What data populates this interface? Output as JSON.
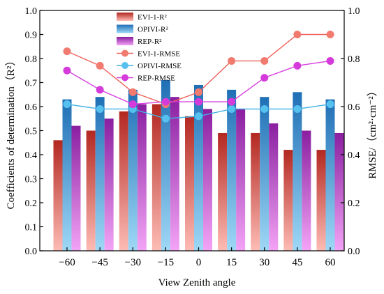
{
  "chart_data": {
    "type": "bar",
    "xlabel": "View Zenith angle",
    "ylabel_left": "Coefficients of determination（R²）",
    "ylabel_right": "RMSE/（cm²·cm⁻²）",
    "ylim_left": [
      0,
      1.0
    ],
    "ylim_right": [
      0,
      1.0
    ],
    "yticks_left": [
      "0.0",
      "0.1",
      "0.2",
      "0.3",
      "0.4",
      "0.5",
      "0.6",
      "0.7",
      "0.8",
      "0.9",
      "1.0"
    ],
    "yticks_right": [
      "0.0",
      "0.2",
      "0.4",
      "0.6",
      "0.8",
      "1.0"
    ],
    "categories": [
      "−60",
      "−45",
      "−30",
      "−15",
      "0",
      "15",
      "30",
      "45",
      "60"
    ],
    "grid": false,
    "legend_position": "top-center",
    "bar_series": [
      {
        "name": "EVI-1-R²",
        "color_top": "#b32821",
        "color_bottom": "#fdbcb5",
        "values": [
          0.46,
          0.5,
          0.58,
          0.61,
          0.56,
          0.49,
          0.49,
          0.42,
          0.42
        ]
      },
      {
        "name": "OPIVI-R²",
        "color_top": "#1f6fb5",
        "color_bottom": "#9fd8f6",
        "values": [
          0.63,
          0.64,
          0.67,
          0.71,
          0.69,
          0.67,
          0.64,
          0.66,
          0.63
        ]
      },
      {
        "name": "REP-R²",
        "color_top": "#8a1fa0",
        "color_bottom": "#f3a4f6",
        "values": [
          0.52,
          0.55,
          0.61,
          0.64,
          0.59,
          0.59,
          0.53,
          0.5,
          0.49
        ]
      }
    ],
    "line_series": [
      {
        "name": "EVI-1-RMSE",
        "color": "#f0605a",
        "marker": "#f27b6f",
        "values": [
          0.83,
          0.77,
          0.66,
          0.61,
          0.66,
          0.79,
          0.79,
          0.9,
          0.9
        ]
      },
      {
        "name": "OPIVI-RMSE",
        "color": "#3fb1e6",
        "marker": "#56c1ee",
        "values": [
          0.61,
          0.59,
          0.59,
          0.55,
          0.56,
          0.59,
          0.59,
          0.59,
          0.61
        ]
      },
      {
        "name": "REP-RMSE",
        "color": "#d83ee0",
        "marker": "#d53bdb",
        "values": [
          0.75,
          0.67,
          0.61,
          0.62,
          0.62,
          0.62,
          0.72,
          0.77,
          0.79
        ]
      }
    ]
  }
}
